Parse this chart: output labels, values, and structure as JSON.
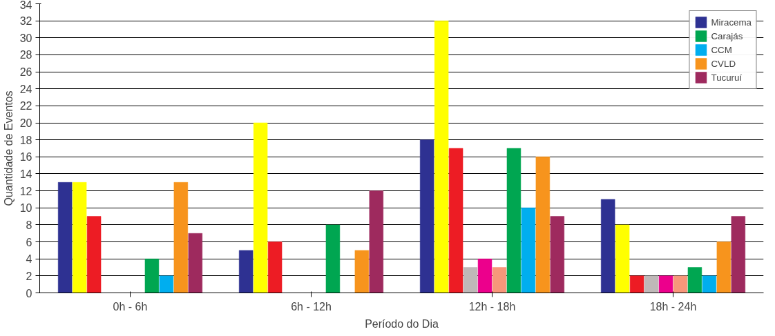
{
  "chart_data": {
    "type": "bar",
    "xlabel": "Período do Dia",
    "ylabel": "Quantidade de Eventos",
    "categories": [
      "0h - 6h",
      "6h - 12h",
      "12h - 18h",
      "18h - 24h"
    ],
    "series": [
      {
        "name": "Miracema",
        "color": "#2e3192",
        "values": [
          13,
          5,
          18,
          11
        ]
      },
      {
        "color": "#ffff00",
        "values": [
          13,
          20,
          32,
          8
        ]
      },
      {
        "color": "#ed1c24",
        "values": [
          9,
          6,
          17,
          2
        ]
      },
      {
        "color": "#bfb8b8",
        "values": [
          0,
          0,
          3,
          2
        ]
      },
      {
        "color": "#ec008c",
        "values": [
          0,
          0,
          4,
          2
        ]
      },
      {
        "color": "#f7977a",
        "values": [
          0,
          0,
          3,
          2
        ]
      },
      {
        "name": "Carajás",
        "color": "#00a651",
        "values": [
          4,
          8,
          17,
          3
        ]
      },
      {
        "name": "CCM",
        "color": "#00aeef",
        "values": [
          2,
          0,
          10,
          2
        ]
      },
      {
        "name": "CVLD",
        "color": "#f7941d",
        "values": [
          13,
          5,
          16,
          6
        ]
      },
      {
        "name": "Tucuruí",
        "color": "#9e2a5e",
        "values": [
          7,
          12,
          9,
          9
        ]
      }
    ],
    "ylim": [
      0,
      34
    ],
    "yticks": [
      0,
      2,
      4,
      6,
      8,
      10,
      12,
      14,
      16,
      18,
      20,
      22,
      24,
      26,
      28,
      30,
      32,
      34
    ],
    "grid": "y",
    "legend": "top right"
  }
}
